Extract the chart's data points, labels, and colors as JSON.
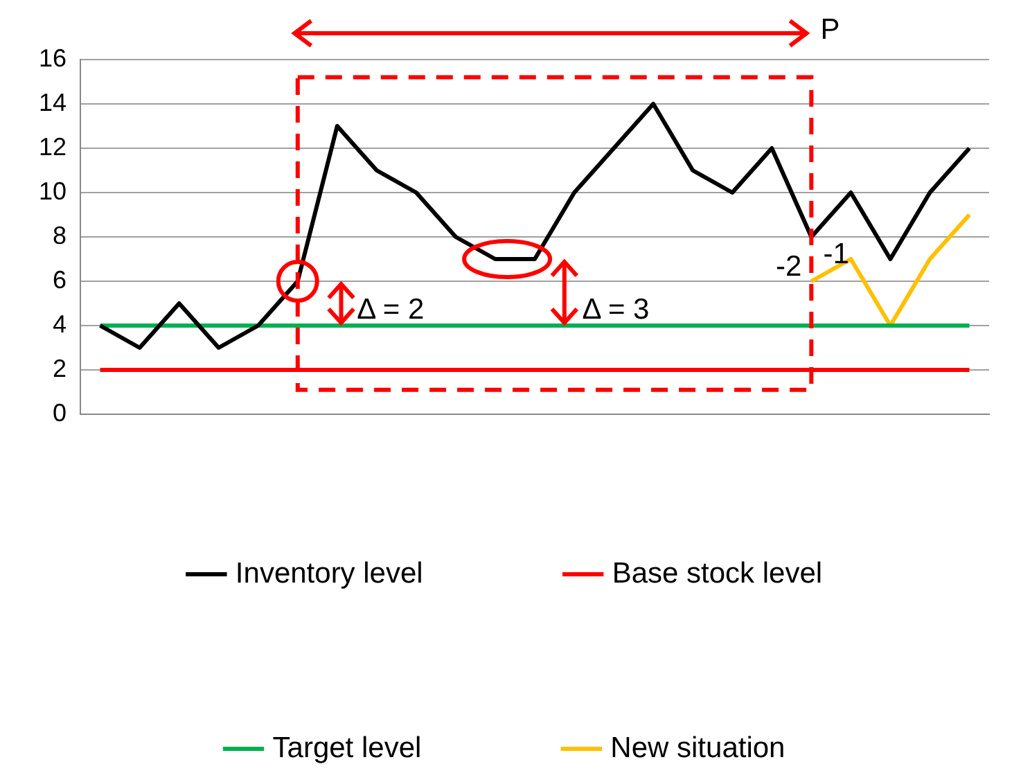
{
  "chart_data": {
    "type": "line",
    "categories": [
      null,
      null,
      null,
      null,
      null,
      null,
      null,
      null,
      null,
      null,
      null,
      null,
      null,
      null,
      null,
      null,
      null,
      null,
      null,
      null,
      null,
      null,
      null
    ],
    "series": [
      {
        "name": "Inventory level",
        "color": "#000000",
        "values": [
          4,
          3,
          5,
          3,
          4,
          6,
          13,
          11,
          10,
          8,
          7,
          7,
          10,
          12,
          14,
          11,
          10,
          12,
          8,
          10,
          7,
          10,
          12
        ]
      },
      {
        "name": "Base stock level",
        "color": "#ff0000",
        "values": [
          2,
          2,
          2,
          2,
          2,
          2,
          2,
          2,
          2,
          2,
          2,
          2,
          2,
          2,
          2,
          2,
          2,
          2,
          2,
          2,
          2,
          2,
          2
        ]
      },
      {
        "name": "Target level",
        "color": "#00b050",
        "values": [
          4,
          4,
          4,
          4,
          4,
          4,
          4,
          4,
          4,
          4,
          4,
          4,
          4,
          4,
          4,
          4,
          4,
          4,
          4,
          4,
          4,
          4,
          4
        ]
      },
      {
        "name": "New situation",
        "color": "#ffc000",
        "values": [
          null,
          null,
          null,
          null,
          null,
          null,
          null,
          null,
          null,
          null,
          null,
          null,
          null,
          null,
          null,
          null,
          null,
          null,
          6,
          7,
          4,
          7,
          9
        ]
      }
    ],
    "ylim": [
      0,
      16
    ],
    "yticks": [
      0,
      2,
      4,
      6,
      8,
      10,
      12,
      14,
      16
    ],
    "grid": "y",
    "tick_labels": "y",
    "legend": "bottom",
    "marker": "none",
    "line_style": "solid",
    "annotations": [
      "P",
      "Δ = 2",
      "Δ = 3",
      "-2",
      "-1"
    ]
  }
}
